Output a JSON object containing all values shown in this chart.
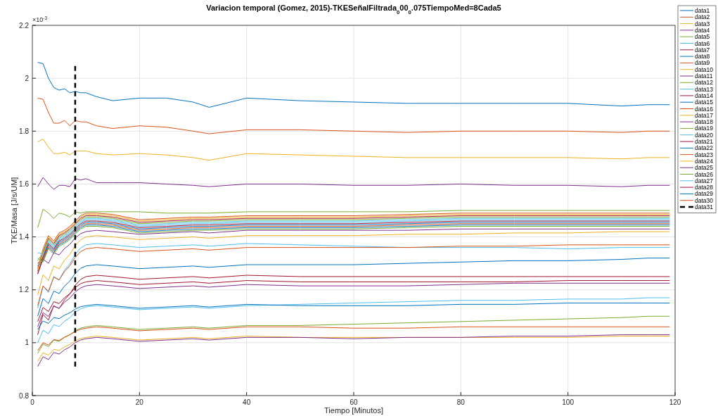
{
  "chart_data": {
    "type": "line",
    "title": "Variacion temporal (Gomez, 2015)-TKESeñalFiltrada$_{0}$00$_{0}$.075TiempoMed=8Cada5",
    "xlabel": "Tiempo [Minutos]",
    "ylabel": "TKE/Masa [J/s/UM]",
    "annotations": [
      "×10$^{-3}$"
    ],
    "x": [
      1,
      2,
      3,
      4,
      5,
      6,
      7,
      8,
      9,
      10,
      12,
      15,
      20,
      25,
      30,
      33,
      40,
      50,
      60,
      70,
      80,
      90,
      100,
      110,
      115,
      119
    ],
    "xlim": [
      0,
      120
    ],
    "xticks": [
      0,
      20,
      40,
      60,
      80,
      100,
      120
    ],
    "ylim": [
      0.8,
      2.2
    ],
    "yticks": [
      0.8,
      1,
      1.2,
      1.4,
      1.6,
      1.8,
      2,
      2.2
    ],
    "grid": true,
    "legend": "right",
    "line_style": "solid",
    "series": [
      {
        "name": "data1",
        "color": "#0072bd",
        "values": [
          2.06,
          2.055,
          2.0,
          1.965,
          1.955,
          1.96,
          1.945,
          1.95,
          1.945,
          1.945,
          1.93,
          1.915,
          1.925,
          1.925,
          1.91,
          1.89,
          1.925,
          1.915,
          1.91,
          1.905,
          1.905,
          1.905,
          1.905,
          1.895,
          1.9,
          1.9
        ]
      },
      {
        "name": "data2",
        "color": "#d95319",
        "values": [
          1.925,
          1.92,
          1.87,
          1.83,
          1.83,
          1.84,
          1.82,
          1.84,
          1.835,
          1.835,
          1.82,
          1.81,
          1.82,
          1.815,
          1.8,
          1.79,
          1.805,
          1.805,
          1.8,
          1.795,
          1.8,
          1.8,
          1.8,
          1.795,
          1.8,
          1.8
        ]
      },
      {
        "name": "data3",
        "color": "#edb120",
        "values": [
          1.76,
          1.77,
          1.74,
          1.715,
          1.715,
          1.72,
          1.71,
          1.725,
          1.725,
          1.725,
          1.715,
          1.71,
          1.715,
          1.71,
          1.7,
          1.69,
          1.715,
          1.71,
          1.705,
          1.7,
          1.7,
          1.7,
          1.7,
          1.695,
          1.7,
          1.7
        ]
      },
      {
        "name": "data4",
        "color": "#7e2f8e",
        "values": [
          1.59,
          1.625,
          1.6,
          1.58,
          1.595,
          1.595,
          1.59,
          1.62,
          1.615,
          1.62,
          1.605,
          1.605,
          1.605,
          1.6,
          1.595,
          1.59,
          1.6,
          1.6,
          1.595,
          1.595,
          1.6,
          1.595,
          1.595,
          1.59,
          1.595,
          1.595
        ]
      },
      {
        "name": "data5",
        "color": "#77ac30",
        "values": [
          1.435,
          1.505,
          1.49,
          1.47,
          1.49,
          1.485,
          1.475,
          1.495,
          1.49,
          1.495,
          1.495,
          1.495,
          1.495,
          1.49,
          1.49,
          1.49,
          1.495,
          1.495,
          1.495,
          1.495,
          1.5,
          1.5,
          1.5,
          1.5,
          1.5,
          1.5
        ]
      },
      {
        "name": "data6",
        "color": "#4dbeee",
        "values": [
          1.29,
          1.33,
          1.38,
          1.36,
          1.39,
          1.4,
          1.415,
          1.435,
          1.455,
          1.465,
          1.465,
          1.46,
          1.44,
          1.445,
          1.45,
          1.45,
          1.455,
          1.455,
          1.455,
          1.46,
          1.465,
          1.465,
          1.465,
          1.465,
          1.465,
          1.465
        ]
      },
      {
        "name": "data7",
        "color": "#a2142f",
        "values": [
          1.27,
          1.345,
          1.395,
          1.375,
          1.405,
          1.415,
          1.43,
          1.45,
          1.47,
          1.48,
          1.48,
          1.475,
          1.455,
          1.46,
          1.465,
          1.465,
          1.47,
          1.47,
          1.47,
          1.475,
          1.48,
          1.48,
          1.48,
          1.48,
          1.48,
          1.48
        ]
      },
      {
        "name": "data8",
        "color": "#0072bd",
        "values": [
          1.3,
          1.32,
          1.37,
          1.35,
          1.38,
          1.39,
          1.405,
          1.425,
          1.445,
          1.455,
          1.455,
          1.45,
          1.43,
          1.435,
          1.44,
          1.44,
          1.445,
          1.445,
          1.445,
          1.45,
          1.455,
          1.455,
          1.455,
          1.455,
          1.455,
          1.455
        ]
      },
      {
        "name": "data9",
        "color": "#d95319",
        "values": [
          1.28,
          1.355,
          1.405,
          1.385,
          1.415,
          1.425,
          1.44,
          1.46,
          1.48,
          1.49,
          1.49,
          1.485,
          1.465,
          1.47,
          1.475,
          1.475,
          1.48,
          1.48,
          1.48,
          1.485,
          1.49,
          1.49,
          1.49,
          1.49,
          1.49,
          1.49
        ]
      },
      {
        "name": "data10",
        "color": "#edb120",
        "values": [
          0.93,
          0.962,
          0.953,
          0.975,
          0.971,
          0.984,
          0.993,
          1.007,
          1.016,
          1.02,
          1.025,
          1.02,
          1.01,
          1.015,
          1.02,
          1.015,
          1.025,
          1.02,
          1.02,
          1.02,
          1.02,
          1.02,
          1.02,
          1.025,
          1.025,
          1.025
        ]
      },
      {
        "name": "data11",
        "color": "#7e2f8e",
        "values": [
          1.26,
          1.316,
          1.3,
          1.34,
          1.332,
          1.356,
          1.372,
          1.396,
          1.412,
          1.42,
          1.425,
          1.42,
          1.41,
          1.415,
          1.42,
          1.415,
          1.425,
          1.425,
          1.425,
          1.425,
          1.43,
          1.43,
          1.43,
          1.43,
          1.43,
          1.43
        ]
      },
      {
        "name": "data12",
        "color": "#77ac30",
        "values": [
          1.31,
          1.34,
          1.39,
          1.37,
          1.4,
          1.41,
          1.425,
          1.445,
          1.465,
          1.475,
          1.475,
          1.47,
          1.45,
          1.455,
          1.46,
          1.46,
          1.465,
          1.465,
          1.465,
          1.47,
          1.475,
          1.475,
          1.475,
          1.475,
          1.475,
          1.475
        ]
      },
      {
        "name": "data13",
        "color": "#4dbeee",
        "values": [
          1.34,
          1.335,
          1.385,
          1.365,
          1.395,
          1.405,
          1.42,
          1.44,
          1.46,
          1.47,
          1.47,
          1.465,
          1.445,
          1.45,
          1.455,
          1.455,
          1.46,
          1.46,
          1.46,
          1.465,
          1.47,
          1.47,
          1.47,
          1.47,
          1.47,
          1.47
        ]
      },
      {
        "name": "data14",
        "color": "#a2142f",
        "values": [
          1.26,
          1.325,
          1.375,
          1.355,
          1.385,
          1.395,
          1.41,
          1.43,
          1.45,
          1.46,
          1.46,
          1.455,
          1.435,
          1.44,
          1.445,
          1.445,
          1.45,
          1.45,
          1.45,
          1.455,
          1.46,
          1.46,
          1.46,
          1.46,
          1.46,
          1.46
        ]
      },
      {
        "name": "data15",
        "color": "#0072bd",
        "values": [
          1.29,
          1.31,
          1.36,
          1.34,
          1.37,
          1.38,
          1.395,
          1.415,
          1.435,
          1.445,
          1.445,
          1.44,
          1.42,
          1.425,
          1.43,
          1.43,
          1.435,
          1.435,
          1.435,
          1.44,
          1.445,
          1.445,
          1.445,
          1.445,
          1.445,
          1.445
        ]
      },
      {
        "name": "data16",
        "color": "#d95319",
        "values": [
          1.3,
          1.315,
          1.365,
          1.345,
          1.375,
          1.385,
          1.4,
          1.42,
          1.44,
          1.45,
          1.45,
          1.445,
          1.425,
          1.43,
          1.435,
          1.435,
          1.44,
          1.44,
          1.44,
          1.445,
          1.45,
          1.45,
          1.45,
          1.45,
          1.45,
          1.45
        ]
      },
      {
        "name": "data17",
        "color": "#edb120",
        "values": [
          1.18,
          1.257,
          1.235,
          1.29,
          1.279,
          1.312,
          1.334,
          1.367,
          1.389,
          1.4,
          1.405,
          1.4,
          1.39,
          1.395,
          1.4,
          1.395,
          1.405,
          1.405,
          1.405,
          1.41,
          1.41,
          1.415,
          1.415,
          1.42,
          1.42,
          1.42
        ]
      },
      {
        "name": "data18",
        "color": "#7e2f8e",
        "values": [
          0.91,
          0.947,
          0.936,
          0.963,
          0.957,
          0.973,
          0.984,
          1.0,
          1.01,
          1.015,
          1.02,
          1.015,
          1.005,
          1.01,
          1.015,
          1.01,
          1.02,
          1.02,
          1.015,
          1.02,
          1.02,
          1.025,
          1.025,
          1.03,
          1.03,
          1.03
        ]
      },
      {
        "name": "data19",
        "color": "#77ac30",
        "values": [
          0.96,
          0.995,
          0.985,
          1.01,
          1.005,
          1.02,
          1.03,
          1.045,
          1.055,
          1.06,
          1.065,
          1.06,
          1.05,
          1.055,
          1.06,
          1.055,
          1.065,
          1.065,
          1.07,
          1.075,
          1.08,
          1.085,
          1.09,
          1.095,
          1.1,
          1.1
        ]
      },
      {
        "name": "data20",
        "color": "#4dbeee",
        "values": [
          1.13,
          1.214,
          1.19,
          1.25,
          1.238,
          1.274,
          1.298,
          1.334,
          1.358,
          1.37,
          1.375,
          1.37,
          1.36,
          1.365,
          1.37,
          1.365,
          1.375,
          1.37,
          1.365,
          1.36,
          1.36,
          1.36,
          1.355,
          1.36,
          1.36,
          1.36
        ]
      },
      {
        "name": "data21",
        "color": "#a2142f",
        "values": [
          1.03,
          1.107,
          1.085,
          1.14,
          1.129,
          1.162,
          1.184,
          1.217,
          1.239,
          1.25,
          1.255,
          1.25,
          1.24,
          1.245,
          1.25,
          1.245,
          1.255,
          1.25,
          1.25,
          1.25,
          1.25,
          1.25,
          1.25,
          1.25,
          1.25,
          1.25
        ]
      },
      {
        "name": "data22",
        "color": "#0072bd",
        "values": [
          1.1,
          1.167,
          1.148,
          1.195,
          1.186,
          1.214,
          1.233,
          1.262,
          1.281,
          1.29,
          1.295,
          1.29,
          1.28,
          1.285,
          1.29,
          1.285,
          1.295,
          1.295,
          1.295,
          1.3,
          1.305,
          1.31,
          1.31,
          1.315,
          1.32,
          1.32
        ]
      },
      {
        "name": "data23",
        "color": "#d95319",
        "values": [
          1.14,
          1.215,
          1.194,
          1.248,
          1.237,
          1.269,
          1.291,
          1.323,
          1.344,
          1.355,
          1.36,
          1.355,
          1.345,
          1.35,
          1.355,
          1.35,
          1.36,
          1.36,
          1.36,
          1.36,
          1.365,
          1.365,
          1.37,
          1.37,
          1.37,
          1.37
        ]
      },
      {
        "name": "data24",
        "color": "#edb120",
        "values": [
          1.27,
          1.35,
          1.4,
          1.38,
          1.41,
          1.42,
          1.435,
          1.455,
          1.475,
          1.485,
          1.485,
          1.48,
          1.46,
          1.465,
          1.47,
          1.47,
          1.475,
          1.475,
          1.475,
          1.48,
          1.485,
          1.485,
          1.485,
          1.485,
          1.485,
          1.485
        ]
      },
      {
        "name": "data25",
        "color": "#7e2f8e",
        "values": [
          1.06,
          1.114,
          1.099,
          1.138,
          1.13,
          1.153,
          1.169,
          1.192,
          1.207,
          1.215,
          1.22,
          1.215,
          1.205,
          1.21,
          1.215,
          1.21,
          1.22,
          1.215,
          1.215,
          1.215,
          1.22,
          1.225,
          1.225,
          1.225,
          1.225,
          1.225
        ]
      },
      {
        "name": "data26",
        "color": "#77ac30",
        "values": [
          1.32,
          1.305,
          1.355,
          1.335,
          1.365,
          1.375,
          1.39,
          1.41,
          1.43,
          1.44,
          1.44,
          1.435,
          1.415,
          1.42,
          1.425,
          1.425,
          1.43,
          1.43,
          1.43,
          1.435,
          1.44,
          1.44,
          1.44,
          1.44,
          1.44,
          1.44
        ]
      },
      {
        "name": "data27",
        "color": "#4dbeee",
        "values": [
          1.0,
          1.047,
          1.034,
          1.068,
          1.061,
          1.081,
          1.095,
          1.115,
          1.128,
          1.135,
          1.14,
          1.135,
          1.125,
          1.13,
          1.135,
          1.13,
          1.14,
          1.145,
          1.15,
          1.155,
          1.16,
          1.16,
          1.165,
          1.165,
          1.17,
          1.17
        ]
      },
      {
        "name": "data28",
        "color": "#a2142f",
        "values": [
          1.08,
          1.133,
          1.118,
          1.155,
          1.148,
          1.17,
          1.185,
          1.208,
          1.223,
          1.23,
          1.235,
          1.23,
          1.22,
          1.225,
          1.23,
          1.225,
          1.235,
          1.23,
          1.23,
          1.23,
          1.23,
          1.23,
          1.235,
          1.235,
          1.235,
          1.235
        ]
      },
      {
        "name": "data29",
        "color": "#0072bd",
        "values": [
          1.05,
          1.082,
          1.073,
          1.095,
          1.091,
          1.104,
          1.113,
          1.127,
          1.136,
          1.14,
          1.145,
          1.14,
          1.13,
          1.135,
          1.14,
          1.135,
          1.145,
          1.14,
          1.14,
          1.14,
          1.145,
          1.145,
          1.15,
          1.15,
          1.15,
          1.15
        ]
      },
      {
        "name": "data30",
        "color": "#d95319",
        "values": [
          0.97,
          1.0,
          0.991,
          1.012,
          1.008,
          1.021,
          1.03,
          1.042,
          1.051,
          1.055,
          1.06,
          1.055,
          1.045,
          1.05,
          1.055,
          1.05,
          1.06,
          1.06,
          1.055,
          1.055,
          1.06,
          1.06,
          1.06,
          1.06,
          1.06,
          1.06
        ]
      },
      {
        "name": "data31",
        "color": "#000000",
        "line_style": "dashed",
        "x": [
          8,
          8
        ],
        "values": [
          0.91,
          2.05
        ]
      }
    ]
  }
}
